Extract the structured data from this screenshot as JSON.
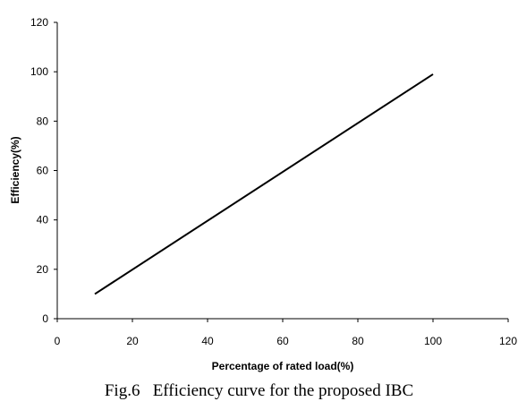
{
  "chart_data": {
    "type": "line",
    "title": "",
    "xlabel": "Percentage of rated load(%)",
    "ylabel": "Efficiency(%)",
    "xlim": [
      0,
      120
    ],
    "ylim": [
      0,
      120
    ],
    "x_ticks": [
      0,
      20,
      40,
      60,
      80,
      100,
      120
    ],
    "y_ticks": [
      0,
      20,
      40,
      60,
      80,
      100,
      120
    ],
    "grid": false,
    "legend": "none",
    "series": [
      {
        "x": [
          10,
          100
        ],
        "y": [
          10,
          99
        ]
      }
    ],
    "line_color": "#000000"
  },
  "caption": "Fig.6   Efficiency curve for the proposed IBC"
}
